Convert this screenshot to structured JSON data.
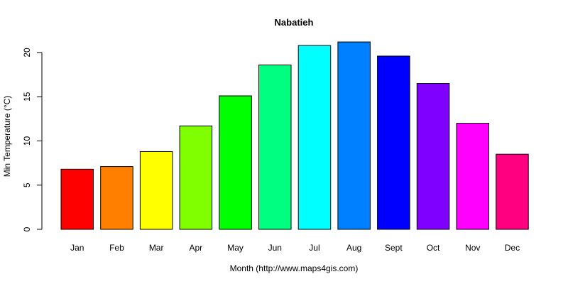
{
  "chart_data": {
    "type": "bar",
    "title": "Nabatieh",
    "xlabel": "Month (http://www.maps4gis.com)",
    "ylabel": "Min Temperature (°C)",
    "categories": [
      "Jan",
      "Feb",
      "Mar",
      "Apr",
      "May",
      "Jun",
      "Jul",
      "Aug",
      "Sept",
      "Oct",
      "Nov",
      "Dec"
    ],
    "values": [
      6.8,
      7.1,
      8.8,
      11.7,
      15.1,
      18.6,
      20.8,
      21.2,
      19.6,
      16.5,
      12.0,
      8.5
    ],
    "colors": [
      "#FF0000",
      "#FF8000",
      "#FFFF00",
      "#80FF00",
      "#00FF00",
      "#00FF80",
      "#00FFFF",
      "#0080FF",
      "#0000FF",
      "#8000FF",
      "#FF00FF",
      "#FF0080"
    ],
    "yticks": [
      0,
      5,
      10,
      15,
      20
    ],
    "ylim": [
      0,
      21.2
    ],
    "grid": false,
    "legend": null
  }
}
